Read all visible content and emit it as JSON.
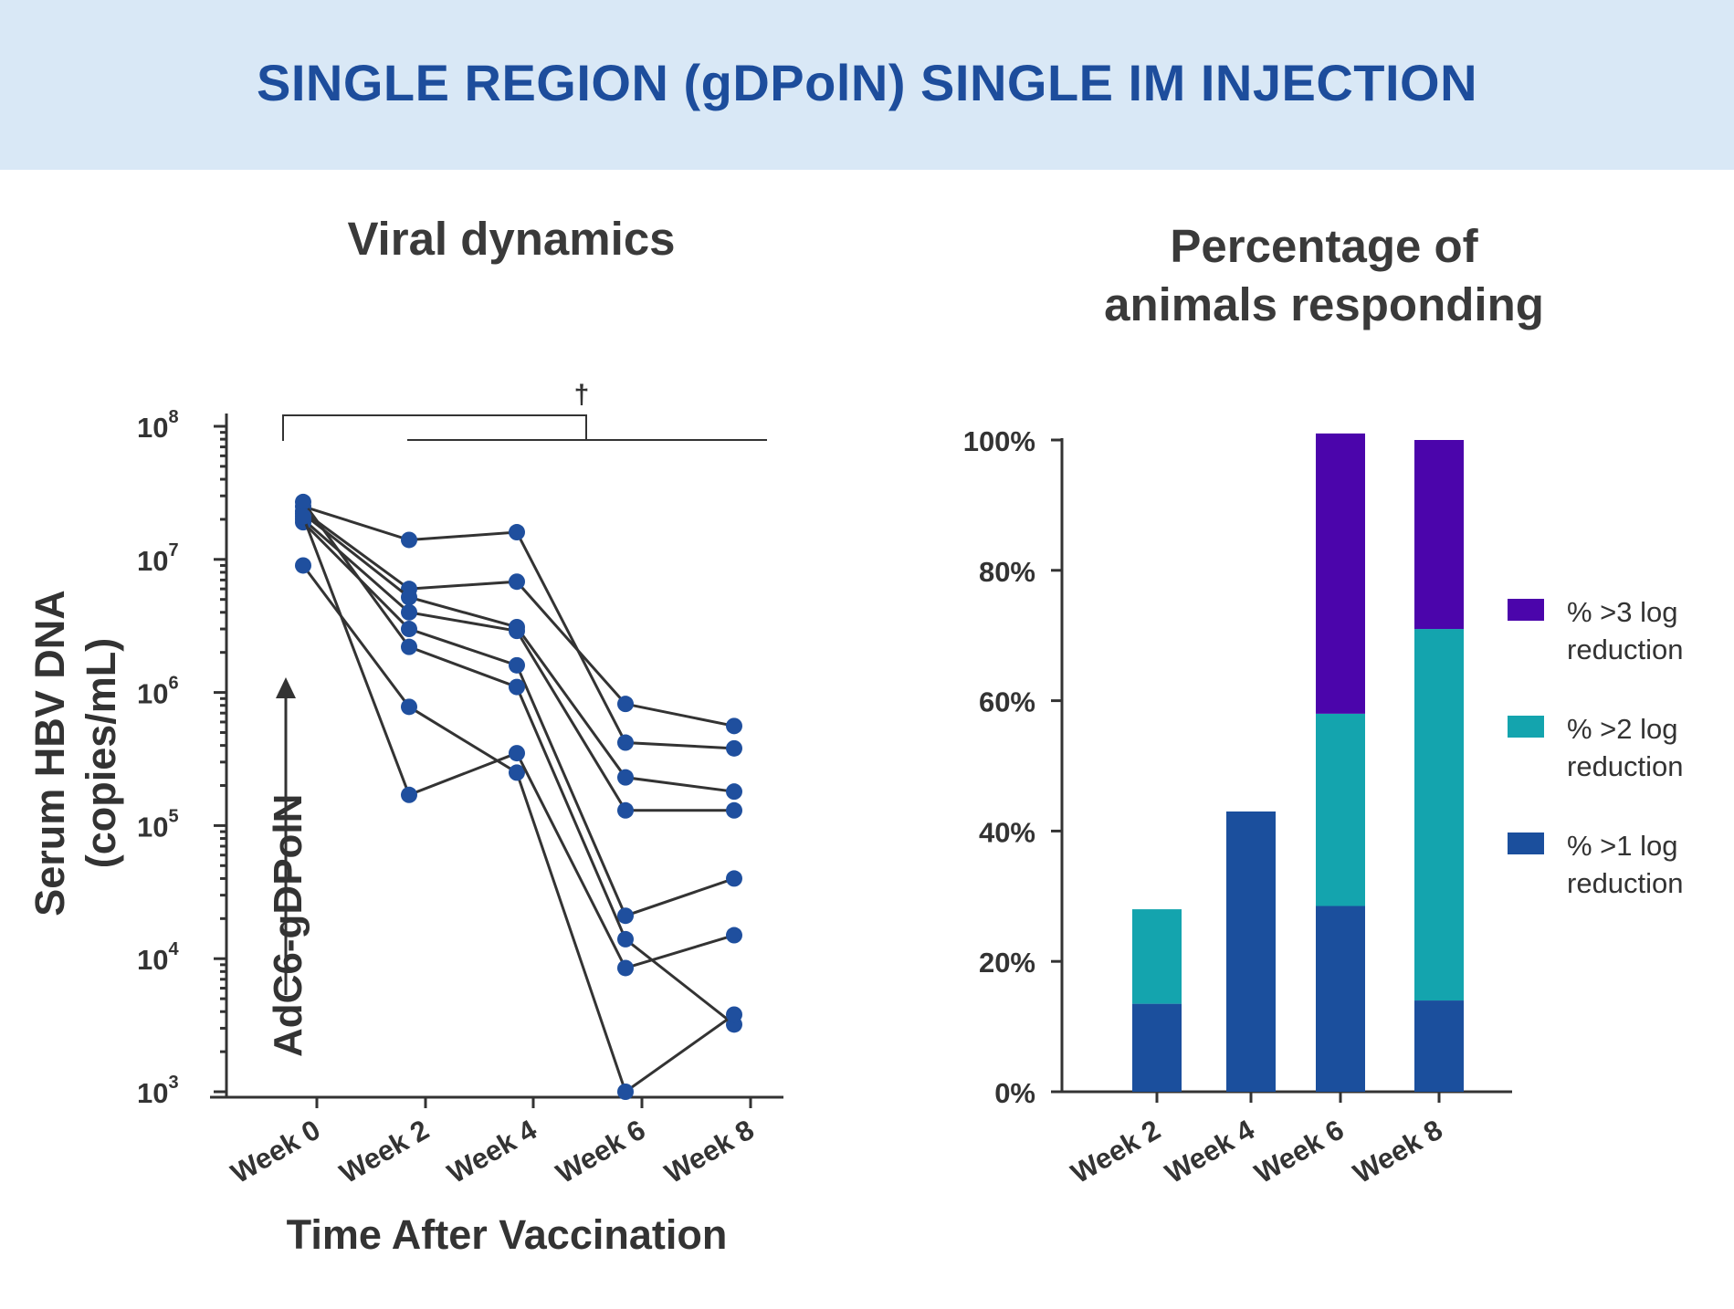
{
  "banner": {
    "title": "SINGLE REGION (gDPolN) SINGLE IM INJECTION"
  },
  "colors": {
    "banner_bg": "#d9e8f6",
    "banner_text": "#1d4d9c",
    "point": "#1f4f9e",
    "line": "#333333",
    "gt3": "#4b05ab",
    "gt2": "#14a4ae",
    "gt1": "#1b4f9d"
  },
  "chart_data": [
    {
      "type": "line",
      "title": "Viral dynamics",
      "xlabel": "Time After Vaccination",
      "ylabel": "Serum HBV DNA\n(copies/mL)",
      "yscale": "log",
      "ylim": [
        1000,
        100000000
      ],
      "yticks": [
        {
          "base": "10",
          "exp": "3"
        },
        {
          "base": "10",
          "exp": "4"
        },
        {
          "base": "10",
          "exp": "5"
        },
        {
          "base": "10",
          "exp": "6"
        },
        {
          "base": "10",
          "exp": "7"
        },
        {
          "base": "10",
          "exp": "8"
        }
      ],
      "categories": [
        "Week 0",
        "Week 2",
        "Week 4",
        "Week 6",
        "Week 8"
      ],
      "annotation": "AdC6-gDPolN",
      "significance_marker": "†",
      "series": [
        {
          "values": [
            25000000,
            14000000,
            16000000,
            420000,
            380000
          ]
        },
        {
          "values": [
            23000000,
            6000000,
            6800000,
            820000,
            560000
          ]
        },
        {
          "values": [
            22000000,
            5200000,
            3100000,
            230000,
            180000
          ]
        },
        {
          "values": [
            20000000,
            4000000,
            2900000,
            130000,
            130000
          ]
        },
        {
          "values": [
            19000000,
            3000000,
            1600000,
            21000,
            40000
          ]
        },
        {
          "values": [
            27000000,
            2200000,
            1100000,
            14000,
            3200
          ]
        },
        {
          "values": [
            9000000,
            780000,
            250000,
            1000,
            3800
          ]
        },
        {
          "values": [
            21000000,
            170000,
            350000,
            8500,
            15000
          ]
        }
      ]
    },
    {
      "type": "bar",
      "stacked": true,
      "title": "Percentage of\nanimals responding",
      "categories": [
        "Week 2",
        "Week 4",
        "Week 6",
        "Week 8"
      ],
      "ylim": [
        0,
        100
      ],
      "yticks": [
        "0%",
        "20%",
        "40%",
        "60%",
        "80%",
        "100%"
      ],
      "legend_position": "right",
      "series": [
        {
          "name": "% >1 log reduction",
          "color": "#1b4f9d",
          "values": [
            13.5,
            43,
            28.5,
            14
          ]
        },
        {
          "name": "% >2 log reduction",
          "color": "#14a4ae",
          "values": [
            14.5,
            0,
            29.5,
            57
          ]
        },
        {
          "name": "% >3 log reduction",
          "color": "#4b05ab",
          "values": [
            0,
            0,
            43,
            29
          ]
        }
      ],
      "legend": [
        {
          "line1": "% >3 log",
          "line2": "reduction",
          "color": "#4b05ab"
        },
        {
          "line1": "% >2 log",
          "line2": "reduction",
          "color": "#14a4ae"
        },
        {
          "line1": "% >1 log",
          "line2": "reduction",
          "color": "#1b4f9d"
        }
      ]
    }
  ]
}
